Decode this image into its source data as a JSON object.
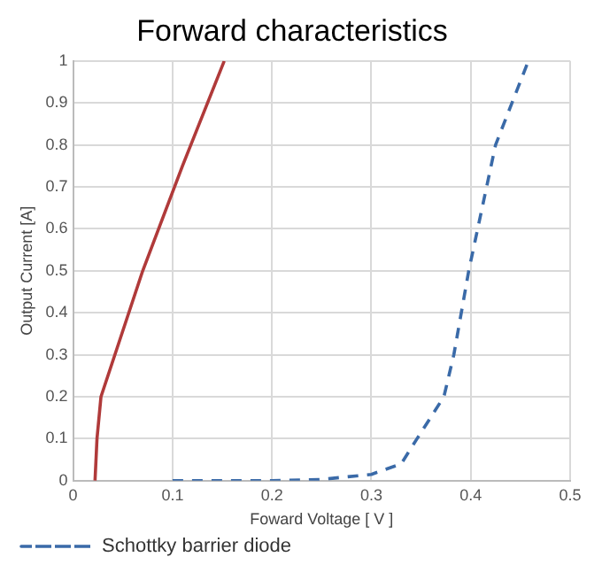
{
  "chart_data": {
    "type": "line",
    "title": "Forward characteristics",
    "xlabel": "Foward Voltage [ V ]",
    "ylabel": "Output Current [A]",
    "xlim": [
      0,
      0.5
    ],
    "xticks": [
      0,
      0.1,
      0.2,
      0.3,
      0.4,
      0.5
    ],
    "ylim": [
      0,
      1
    ],
    "yticks": [
      0,
      0.1,
      0.2,
      0.3,
      0.4,
      0.5,
      0.6,
      0.7,
      0.8,
      0.9,
      1
    ],
    "grid": true,
    "legend": "bottom",
    "marker": "none",
    "series": [
      {
        "color": "#b03a3a",
        "line_style": "solid",
        "x": [
          0.022,
          0.024,
          0.028,
          0.07,
          0.11,
          0.152
        ],
        "values": [
          0,
          0.1,
          0.2,
          0.5,
          0.75,
          1
        ]
      },
      {
        "name": "Schottky barrier diode",
        "color": "#3a6aa8",
        "line_style": "dashed",
        "x": [
          0.1,
          0.2,
          0.25,
          0.3,
          0.33,
          0.346,
          0.373,
          0.383,
          0.398,
          0.425,
          0.458
        ],
        "values": [
          0,
          0,
          0.003,
          0.015,
          0.04,
          0.1,
          0.2,
          0.3,
          0.5,
          0.8,
          1
        ]
      }
    ]
  }
}
